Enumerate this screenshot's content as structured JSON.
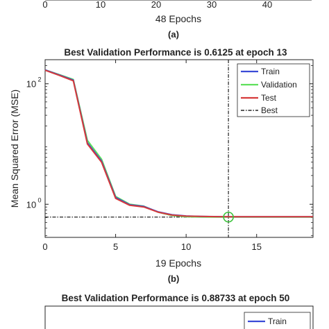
{
  "top_chart": {
    "tick_labels": [
      "0",
      "10",
      "20",
      "30",
      "40"
    ],
    "xlabel": "48 Epochs",
    "caption": "(a)"
  },
  "chart_data": [
    {
      "type": "line",
      "title": "Best Validation Performance is 0.6125 at epoch 13",
      "xlabel": "19 Epochs",
      "ylabel": "Mean Squared Error  (MSE)",
      "caption": "(b)",
      "xlim": [
        0,
        19
      ],
      "ylim_log10": [
        -0.55,
        2.4
      ],
      "yscale": "log",
      "xticks": [
        0,
        5,
        10,
        15
      ],
      "yticks": [
        1,
        100
      ],
      "ytick_labels": {
        "base": "10",
        "exponents": [
          "0",
          "2"
        ]
      },
      "grid": false,
      "legend": "top-right",
      "best": {
        "epoch": 13,
        "value": 0.6125
      },
      "series": [
        {
          "name": "Train",
          "color": "#3a4bd6",
          "x": [
            0,
            1,
            2,
            3,
            4,
            5,
            6,
            7,
            8,
            9,
            10,
            11,
            12,
            13,
            14,
            15,
            16,
            17,
            18,
            19
          ],
          "y": [
            170,
            140,
            115,
            10.5,
            5.2,
            1.3,
            0.98,
            0.92,
            0.75,
            0.67,
            0.64,
            0.63,
            0.625,
            0.62,
            0.62,
            0.62,
            0.62,
            0.62,
            0.62,
            0.62
          ]
        },
        {
          "name": "Validation",
          "color": "#5ee05a",
          "x": [
            0,
            1,
            2,
            3,
            4,
            5,
            6,
            7,
            8,
            9,
            10,
            11,
            12,
            13,
            14,
            15,
            16,
            17,
            18,
            19
          ],
          "y": [
            170,
            142,
            118,
            11.5,
            5.6,
            1.35,
            1.0,
            0.93,
            0.74,
            0.65,
            0.62,
            0.615,
            0.613,
            0.6125,
            0.613,
            0.613,
            0.614,
            0.614,
            0.614,
            0.614
          ]
        },
        {
          "name": "Test",
          "color": "#d63a3a",
          "x": [
            0,
            1,
            2,
            3,
            4,
            5,
            6,
            7,
            8,
            9,
            10,
            11,
            12,
            13,
            14,
            15,
            16,
            17,
            18,
            19
          ],
          "y": [
            168,
            138,
            112,
            10,
            5.0,
            1.25,
            0.96,
            0.9,
            0.74,
            0.66,
            0.635,
            0.628,
            0.623,
            0.62,
            0.62,
            0.62,
            0.62,
            0.62,
            0.62,
            0.62
          ]
        }
      ],
      "best_label": "Best"
    },
    {
      "type": "line",
      "title": "Best Validation Performance is 0.88733 at epoch 50",
      "legend_visible": [
        "Train"
      ]
    }
  ]
}
